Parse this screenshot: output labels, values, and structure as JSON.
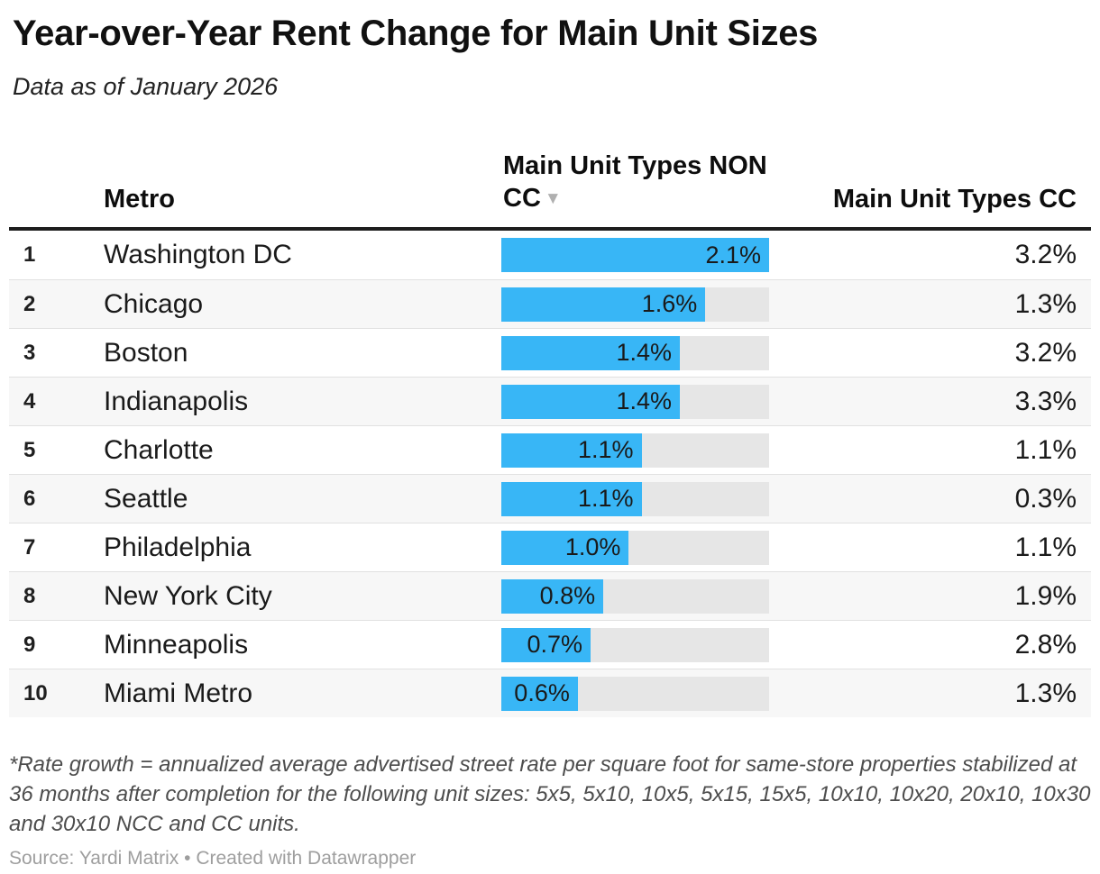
{
  "title": "Year-over-Year Rent Change for Main Unit Sizes",
  "subtitle": "Data as of January 2026",
  "icons": {
    "sort_desc": "▼"
  },
  "colors": {
    "bar_fill": "#38b6f6",
    "bar_track": "#e6e6e6",
    "row_stripe": "#f7f7f7",
    "header_rule": "#1d1d1d"
  },
  "chart_data": {
    "type": "table",
    "title": "Year-over-Year Rent Change for Main Unit Sizes",
    "subtitle": "Data as of January 2026",
    "columns": [
      "",
      "Metro",
      "Main Unit Types NON CC",
      "Main Unit Types CC"
    ],
    "sorted_by": "Main Unit Types NON CC",
    "sort_direction": "descending",
    "bar_axis_max": 2.1,
    "rows": [
      {
        "rank": "1",
        "metro": "Washington DC",
        "non_cc_pct": 2.1,
        "non_cc_label": "2.1%",
        "cc_pct": 3.2,
        "cc_label": "3.2%"
      },
      {
        "rank": "2",
        "metro": "Chicago",
        "non_cc_pct": 1.6,
        "non_cc_label": "1.6%",
        "cc_pct": 1.3,
        "cc_label": "1.3%"
      },
      {
        "rank": "3",
        "metro": "Boston",
        "non_cc_pct": 1.4,
        "non_cc_label": "1.4%",
        "cc_pct": 3.2,
        "cc_label": "3.2%"
      },
      {
        "rank": "4",
        "metro": "Indianapolis",
        "non_cc_pct": 1.4,
        "non_cc_label": "1.4%",
        "cc_pct": 3.3,
        "cc_label": "3.3%"
      },
      {
        "rank": "5",
        "metro": "Charlotte",
        "non_cc_pct": 1.1,
        "non_cc_label": "1.1%",
        "cc_pct": 1.1,
        "cc_label": "1.1%"
      },
      {
        "rank": "6",
        "metro": "Seattle",
        "non_cc_pct": 1.1,
        "non_cc_label": "1.1%",
        "cc_pct": 0.3,
        "cc_label": "0.3%"
      },
      {
        "rank": "7",
        "metro": "Philadelphia",
        "non_cc_pct": 1.0,
        "non_cc_label": "1.0%",
        "cc_pct": 1.1,
        "cc_label": "1.1%"
      },
      {
        "rank": "8",
        "metro": "New York City",
        "non_cc_pct": 0.8,
        "non_cc_label": "0.8%",
        "cc_pct": 1.9,
        "cc_label": "1.9%"
      },
      {
        "rank": "9",
        "metro": "Minneapolis",
        "non_cc_pct": 0.7,
        "non_cc_label": "0.7%",
        "cc_pct": 2.8,
        "cc_label": "2.8%"
      },
      {
        "rank": "10",
        "metro": "Miami Metro",
        "non_cc_pct": 0.6,
        "non_cc_label": "0.6%",
        "cc_pct": 1.3,
        "cc_label": "1.3%"
      }
    ]
  },
  "footnote": "*Rate growth = annualized average advertised street rate per square foot for same-store properties stabilized at 36 months after completion for the following unit sizes: 5x5, 5x10, 10x5, 5x15, 15x5, 10x10, 10x20, 20x10, 10x30 and 30x10 NCC and CC units.",
  "source": "Source: Yardi Matrix • Created with Datawrapper"
}
